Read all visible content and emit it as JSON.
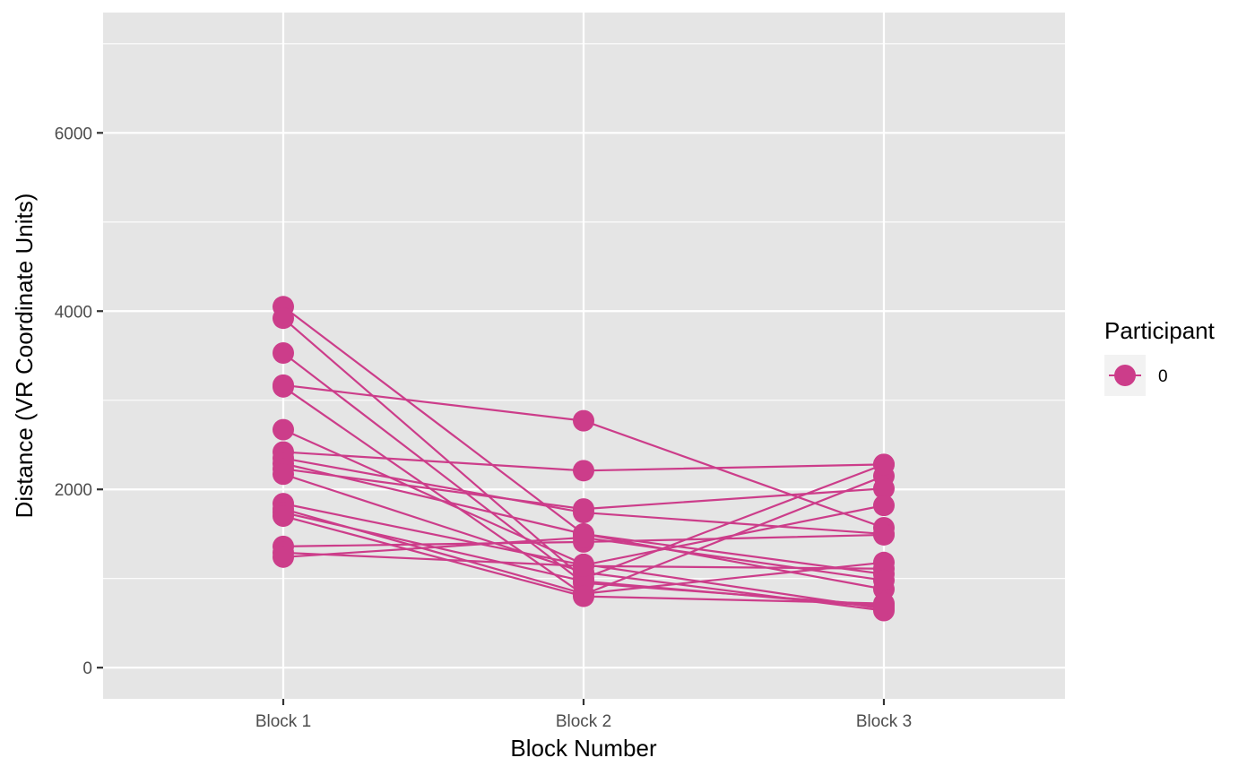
{
  "chart_data": {
    "type": "line",
    "xlabel": "Block Number",
    "ylabel": "Distance (VR Coordinate Units)",
    "categories": [
      "Block 1",
      "Block 2",
      "Block 3"
    ],
    "ylim": [
      -350,
      7350
    ],
    "yticks": [
      0,
      2000,
      4000,
      6000
    ],
    "grid": true,
    "legend": {
      "title": "Participant",
      "entries": [
        "0"
      ],
      "position": "right"
    },
    "color": "#CC3D8A",
    "panel_background": "#E5E5E5",
    "series": [
      {
        "values": [
          4050,
          1500,
          1050
        ]
      },
      {
        "values": [
          3920,
          1000,
          2280
        ]
      },
      {
        "values": [
          3530,
          950,
          700
        ]
      },
      {
        "values": [
          3170,
          2770,
          1570
        ]
      },
      {
        "values": [
          3150,
          820,
          2150
        ]
      },
      {
        "values": [
          2670,
          1160,
          660
        ]
      },
      {
        "values": [
          2420,
          2210,
          2280
        ]
      },
      {
        "values": [
          2350,
          1740,
          1500
        ]
      },
      {
        "values": [
          2290,
          1500,
          880
        ]
      },
      {
        "values": [
          2230,
          1780,
          2010
        ]
      },
      {
        "values": [
          2170,
          1070,
          640
        ]
      },
      {
        "values": [
          1840,
          1150,
          1820
        ]
      },
      {
        "values": [
          1780,
          830,
          1180
        ]
      },
      {
        "values": [
          1740,
          970,
          680
        ]
      },
      {
        "values": [
          1700,
          800,
          720
        ]
      },
      {
        "values": [
          1360,
          1410,
          1490
        ]
      },
      {
        "values": [
          1290,
          1140,
          1110
        ]
      },
      {
        "values": [
          1240,
          1460,
          980
        ]
      }
    ]
  }
}
